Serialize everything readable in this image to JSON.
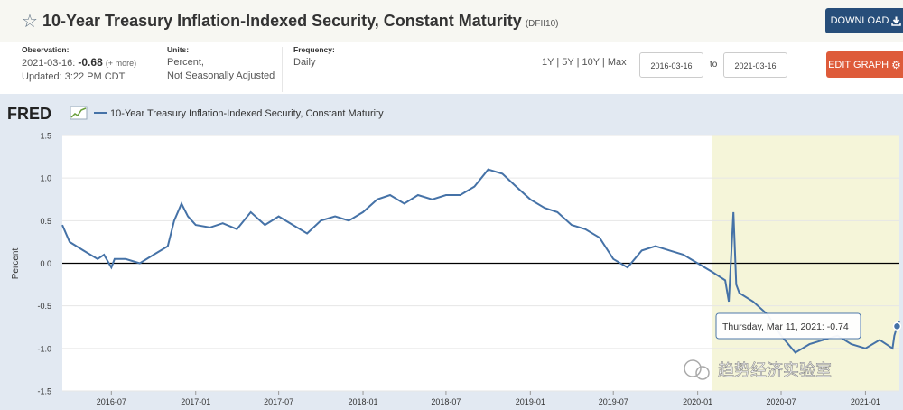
{
  "header": {
    "title": "10-Year Treasury Inflation-Indexed Security, Constant Maturity",
    "series_id": "(DFII10)",
    "download_label": "DOWNLOAD",
    "edit_label": "EDIT GRAPH"
  },
  "observation": {
    "label": "Observation:",
    "date": "2021-03-16:",
    "value": "-0.68",
    "more": "(+ more)",
    "updated": "Updated: 3:22 PM CDT"
  },
  "units": {
    "label": "Units:",
    "line1": "Percent,",
    "line2": "Not Seasonally Adjusted"
  },
  "frequency": {
    "label": "Frequency:",
    "value": "Daily"
  },
  "ranges": [
    "1Y",
    "5Y",
    "10Y",
    "Max"
  ],
  "date_range": {
    "start": "2016-03-16",
    "to_label": "to",
    "end": "2021-03-16"
  },
  "legend": {
    "brand": "FRED",
    "series_label": "10-Year Treasury Inflation-Indexed Security, Constant Maturity"
  },
  "tooltip": {
    "text": "Thursday, Mar 11, 2021: -0.74"
  },
  "watermark": {
    "text": "趋势经济实验室"
  },
  "colors": {
    "line": "#4572a7",
    "recession": "#f5f5d9",
    "plot_bg": "#ffffff",
    "frame": "#e2e9f2",
    "download": "#274e7a",
    "edit": "#de5b3a"
  },
  "chart_data": {
    "type": "line",
    "title": "10-Year Treasury Inflation-Indexed Security, Constant Maturity",
    "xlabel": "",
    "ylabel": "Percent",
    "ylim": [
      -1.5,
      1.5
    ],
    "yticks": [
      "1.5",
      "1.0",
      "0.5",
      "0.0",
      "-0.5",
      "-1.0",
      "-1.5"
    ],
    "xticks": [
      "2016-07",
      "2017-01",
      "2017-07",
      "2018-01",
      "2018-07",
      "2019-01",
      "2019-07",
      "2020-01",
      "2020-07",
      "2021-01"
    ],
    "xrange": [
      "2016-03-16",
      "2021-03-16"
    ],
    "shaded_period": [
      "2020-02",
      "2021-03-16"
    ],
    "series": [
      {
        "name": "10-Year Treasury Inflation-Indexed Security, Constant Maturity",
        "x": [
          "2016-03-16",
          "2016-04-01",
          "2016-05-01",
          "2016-06-01",
          "2016-06-15",
          "2016-07-01",
          "2016-07-08",
          "2016-08-01",
          "2016-09-01",
          "2016-10-01",
          "2016-11-01",
          "2016-11-15",
          "2016-12-01",
          "2016-12-15",
          "2017-01-01",
          "2017-02-01",
          "2017-03-01",
          "2017-04-01",
          "2017-05-01",
          "2017-06-01",
          "2017-07-01",
          "2017-08-01",
          "2017-09-01",
          "2017-10-01",
          "2017-11-01",
          "2017-12-01",
          "2018-01-01",
          "2018-02-01",
          "2018-03-01",
          "2018-04-01",
          "2018-05-01",
          "2018-06-01",
          "2018-07-01",
          "2018-08-01",
          "2018-09-01",
          "2018-10-01",
          "2018-11-01",
          "2018-12-01",
          "2019-01-01",
          "2019-02-01",
          "2019-03-01",
          "2019-04-01",
          "2019-05-01",
          "2019-06-01",
          "2019-07-01",
          "2019-08-01",
          "2019-09-01",
          "2019-10-01",
          "2019-11-01",
          "2019-12-01",
          "2020-01-01",
          "2020-02-01",
          "2020-03-01",
          "2020-03-09",
          "2020-03-19",
          "2020-03-25",
          "2020-04-01",
          "2020-05-01",
          "2020-06-01",
          "2020-07-01",
          "2020-08-01",
          "2020-09-01",
          "2020-10-01",
          "2020-11-01",
          "2020-12-01",
          "2021-01-01",
          "2021-02-01",
          "2021-02-15",
          "2021-03-01",
          "2021-03-05",
          "2021-03-11",
          "2021-03-16"
        ],
        "values": [
          0.45,
          0.25,
          0.15,
          0.05,
          0.1,
          -0.05,
          0.05,
          0.05,
          0.0,
          0.1,
          0.2,
          0.5,
          0.7,
          0.55,
          0.45,
          0.42,
          0.47,
          0.4,
          0.6,
          0.45,
          0.55,
          0.45,
          0.35,
          0.5,
          0.55,
          0.5,
          0.6,
          0.75,
          0.8,
          0.7,
          0.8,
          0.75,
          0.8,
          0.8,
          0.9,
          1.1,
          1.05,
          0.9,
          0.75,
          0.65,
          0.6,
          0.45,
          0.4,
          0.3,
          0.05,
          -0.05,
          0.15,
          0.2,
          0.15,
          0.1,
          0.0,
          -0.1,
          -0.2,
          -0.45,
          0.6,
          -0.25,
          -0.35,
          -0.45,
          -0.6,
          -0.85,
          -1.05,
          -0.95,
          -0.9,
          -0.85,
          -0.95,
          -1.0,
          -0.9,
          -0.95,
          -1.0,
          -0.85,
          -0.74,
          -0.68
        ]
      }
    ]
  }
}
